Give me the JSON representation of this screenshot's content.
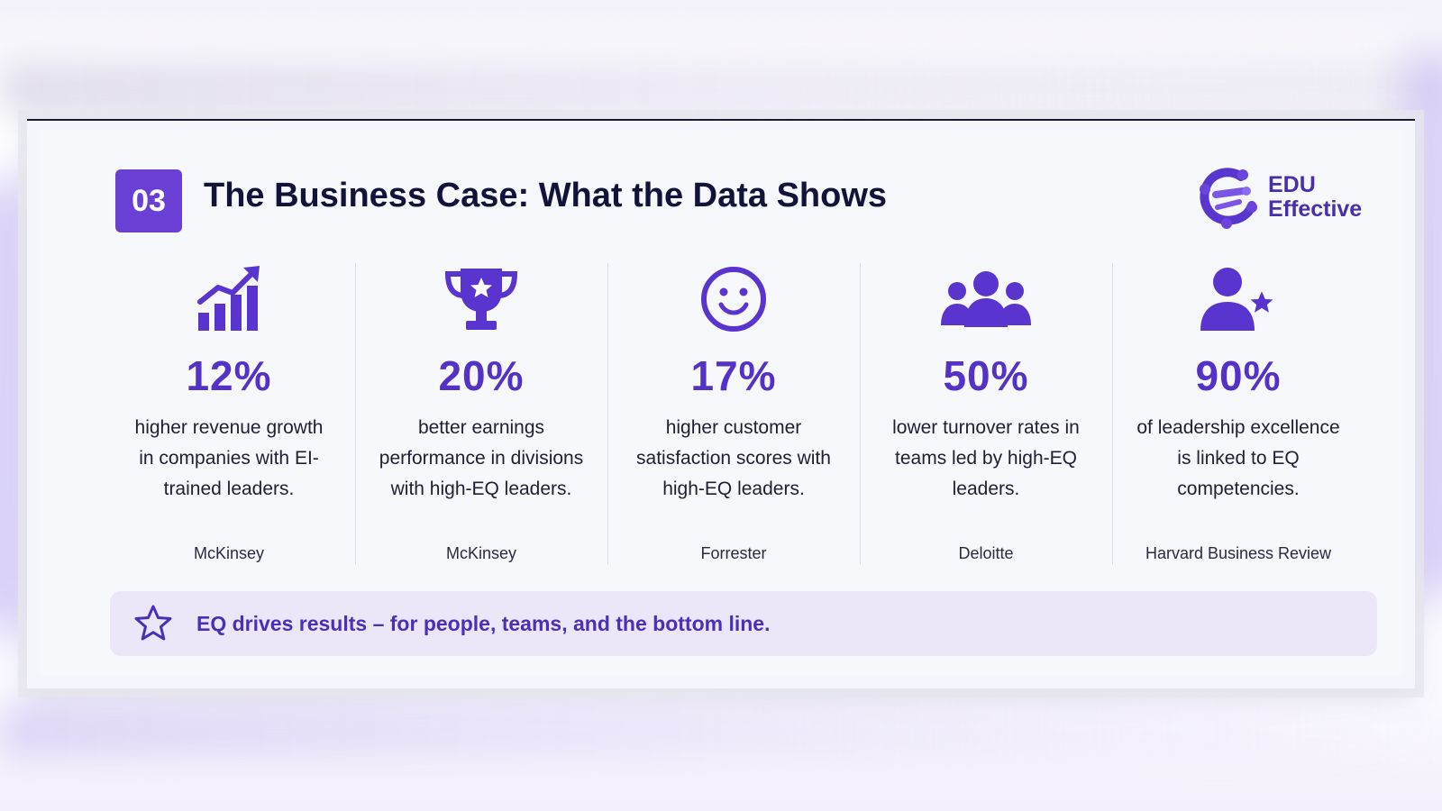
{
  "header": {
    "badge": "03",
    "title": "The Business Case: What the Data Shows"
  },
  "logo": {
    "line1": "EDU",
    "line2": "Effective"
  },
  "stats": [
    {
      "icon": "bar-chart-growth-icon",
      "value": "12%",
      "desc": "higher revenue growth in companies with EI-trained leaders.",
      "source": "McKinsey"
    },
    {
      "icon": "trophy-icon",
      "value": "20%",
      "desc": "better earnings performance in divisions with high-EQ leaders.",
      "source": "McKinsey"
    },
    {
      "icon": "smiley-face-icon",
      "value": "17%",
      "desc": "higher customer satisfaction scores with high-EQ leaders.",
      "source": "Forrester"
    },
    {
      "icon": "team-group-icon",
      "value": "50%",
      "desc": "lower turnover rates in teams led by high-EQ leaders.",
      "source": "Deloitte"
    },
    {
      "icon": "person-star-icon",
      "value": "90%",
      "desc": "of leadership excellence is linked to EQ competencies.",
      "source": "Harvard Business Review"
    }
  ],
  "banner": {
    "text": "EQ drives results – for people, teams, and the bottom line."
  },
  "colors": {
    "accent": "#5431c7",
    "badge": "#6a3fd6",
    "title": "#12133a",
    "banner_bg": "#ebe6f8"
  }
}
